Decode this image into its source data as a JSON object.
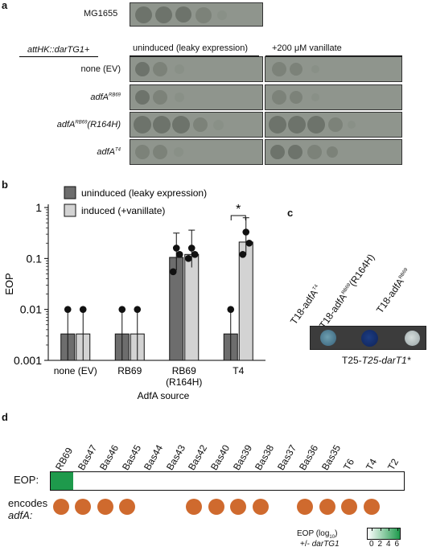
{
  "panel_a": {
    "letter": "a",
    "control_label": "MG1655",
    "construct_label": "attHK::darTG1+",
    "col_uninduced": "uninduced (leaky expression)",
    "col_induced": "+200 μM vanillate",
    "rows": [
      {
        "label": "none (EV)"
      },
      {
        "label": "adfA",
        "sup": "RB69"
      },
      {
        "label": "adfA",
        "sup": "RB69",
        "suffix": "(R164H)"
      },
      {
        "label": "adfA",
        "sup": "T4"
      }
    ]
  },
  "panel_b": {
    "letter": "b",
    "legend": [
      "uninduced (leaky expression)",
      "induced (+vanillate)"
    ],
    "significance": "*",
    "chart_data": {
      "type": "bar",
      "ylabel": "EOP",
      "xlabel": "AdfA source",
      "yscale": "log",
      "ylim": [
        0.001,
        1
      ],
      "ytick_labels": [
        "1",
        "0.1",
        "0.01",
        "0.001"
      ],
      "categories": [
        "none (EV)",
        "RB69",
        "RB69\n(R164H)",
        "T4"
      ],
      "category_lines": [
        [
          "none (EV)"
        ],
        [
          "RB69"
        ],
        [
          "RB69",
          "(R164H)"
        ],
        [
          "T4"
        ]
      ],
      "series": [
        {
          "name": "uninduced (leaky expression)",
          "color": "#6d6d6d",
          "values": [
            0.0033,
            0.0033,
            0.105,
            0.0033
          ]
        },
        {
          "name": "induced (+vanillate)",
          "color": "#d3d3d3",
          "values": [
            0.0033,
            0.0033,
            0.12,
            0.21
          ]
        }
      ]
    }
  },
  "panel_c": {
    "letter": "c",
    "labels": [
      {
        "main": "T18-adfA",
        "sup": "T4",
        "suffix": ""
      },
      {
        "main": "T18-adfA",
        "sup": "RB69",
        "suffix": "(R164H)"
      },
      {
        "main": "T18-adfA",
        "sup": "RB69",
        "suffix": ""
      }
    ],
    "bottom_label": "T25-darT1*"
  },
  "panel_d": {
    "letter": "d",
    "phages": [
      "RB69",
      "Bas47",
      "Bas46",
      "Bas45",
      "Bas44",
      "Bas43",
      "Bas42",
      "Bas40",
      "Bas39",
      "Bas38",
      "Bas37",
      "Bas36",
      "Bas35",
      "T6",
      "T4",
      "T2"
    ],
    "eop_label": "EOP:",
    "eop_values": [
      5,
      0,
      0,
      0,
      0,
      0,
      0,
      0,
      0,
      0,
      0,
      0,
      0,
      0,
      0,
      0
    ],
    "encodes_label_line1": "encodes",
    "encodes_label_line2": "adfA:",
    "encodes": [
      true,
      true,
      true,
      true,
      false,
      false,
      true,
      true,
      true,
      true,
      false,
      true,
      true,
      true,
      true,
      false
    ],
    "dot_color": "#cf6a2e",
    "heat_color": "#1e9a4c",
    "scale_title": "EOP (log",
    "scale_sub": "10",
    "scale_title_end": ")",
    "scale_line2_a": "+/- ",
    "scale_line2_b": "darTG1",
    "scale_ticks": [
      "0",
      "2",
      "4",
      "6"
    ]
  }
}
